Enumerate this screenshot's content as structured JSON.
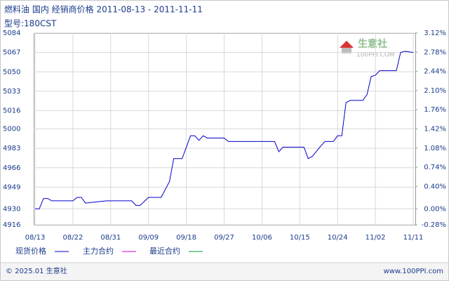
{
  "chart_data": {
    "type": "line",
    "title": "燃料油 国内 经销商价格 2011-08-13 - 2011-11-11",
    "subtitle": "型号:180CST",
    "watermark": {
      "name": "生意社",
      "site": "100PPI.COM"
    },
    "x": [
      "08/13",
      "08/14",
      "08/15",
      "08/16",
      "08/17",
      "08/22",
      "08/23",
      "08/24",
      "08/25",
      "08/30",
      "09/05",
      "09/06",
      "09/07",
      "09/09",
      "09/12",
      "09/14",
      "09/15",
      "09/17",
      "09/19",
      "09/20",
      "09/21",
      "09/22",
      "09/23",
      "09/27",
      "09/28",
      "10/09",
      "10/10",
      "10/11",
      "10/16",
      "10/17",
      "10/18",
      "10/20",
      "10/21",
      "10/23",
      "10/24",
      "10/25",
      "10/26",
      "10/27",
      "10/30",
      "10/31",
      "11/01",
      "11/02",
      "11/03",
      "11/07",
      "11/08",
      "11/09",
      "11/11"
    ],
    "series": [
      {
        "name": "现货价格",
        "color": "#0000cc",
        "values": [
          4930,
          4930,
          4939,
          4939,
          4937,
          4937,
          4940,
          4940,
          4935,
          4937,
          4937,
          4933,
          4933,
          4940,
          4940,
          4954,
          4974,
          4974,
          4994,
          4994,
          4990,
          4994,
          4992,
          4992,
          4989,
          4989,
          4980,
          4984,
          4984,
          4974,
          4976,
          4985,
          4989,
          4989,
          4994,
          4994,
          5023,
          5025,
          5025,
          5030,
          5046,
          5047,
          5051,
          5051,
          5067,
          5068,
          5067
        ]
      },
      {
        "name": "主力合约",
        "color": "#cc00cc",
        "values": [
          null,
          null,
          null,
          null,
          null,
          null,
          null,
          null,
          null,
          null,
          null,
          null,
          null,
          null,
          null,
          null,
          null,
          null,
          null,
          null,
          null,
          null,
          null,
          null,
          null,
          null,
          null,
          null,
          null,
          null,
          null,
          null,
          null,
          null,
          null,
          null,
          null,
          null,
          null,
          null,
          null,
          null,
          null,
          null,
          null,
          null,
          null
        ]
      },
      {
        "name": "最近合约",
        "color": "#009933",
        "values": [
          null,
          null,
          null,
          null,
          null,
          null,
          null,
          null,
          null,
          null,
          null,
          null,
          null,
          null,
          null,
          null,
          null,
          null,
          null,
          null,
          null,
          null,
          null,
          null,
          null,
          null,
          null,
          null,
          null,
          null,
          null,
          null,
          null,
          null,
          null,
          null,
          null,
          null,
          null,
          null,
          null,
          null,
          null,
          null,
          null,
          null,
          null
        ]
      }
    ],
    "xticks": [
      "08/13",
      "08/22",
      "08/31",
      "09/09",
      "09/18",
      "09/27",
      "10/06",
      "10/15",
      "10/24",
      "11/02",
      "11/11"
    ],
    "ylim": [
      4916,
      5084
    ],
    "yticks": [
      4916,
      4930,
      4949,
      4966,
      4983,
      5000,
      5016,
      5033,
      5050,
      5067,
      5084
    ],
    "y2lim": [
      -0.28,
      3.12
    ],
    "y2ticks": [
      {
        "value": -0.28,
        "label": "-0.28%"
      },
      {
        "value": 0,
        "label": "0.00%"
      },
      {
        "value": 0.4,
        "label": "0.40%"
      },
      {
        "value": 0.74,
        "label": "0.74%"
      },
      {
        "value": 1.08,
        "label": "1.08%"
      },
      {
        "value": 1.42,
        "label": "1.42%"
      },
      {
        "value": 1.76,
        "label": "1.76%"
      },
      {
        "value": 2.1,
        "label": "2.10%"
      },
      {
        "value": 2.44,
        "label": "2.44%"
      },
      {
        "value": 2.78,
        "label": "2.78%"
      },
      {
        "value": 3.12,
        "label": "3.12%"
      }
    ],
    "grid": true
  },
  "footer": {
    "left": "© 2025.01 生意社",
    "right": "www.100PPI.com"
  }
}
